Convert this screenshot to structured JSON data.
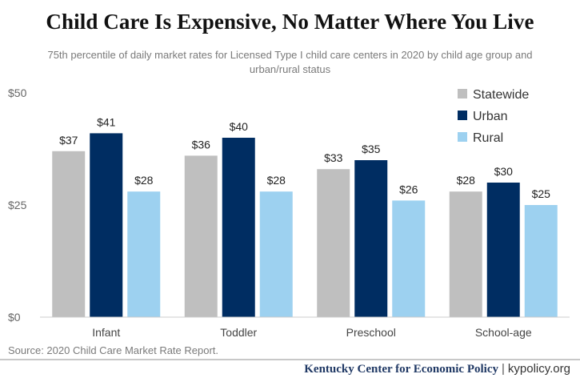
{
  "header": {
    "title": "Child Care Is Expensive, No Matter Where You Live",
    "subtitle": "75th percentile of daily market rates for Licensed Type I child care centers in 2020 by child age group and urban/rural status"
  },
  "chart_data": {
    "type": "bar",
    "categories": [
      "Infant",
      "Toddler",
      "Preschool",
      "School-age"
    ],
    "series": [
      {
        "name": "Statewide",
        "values": [
          37,
          36,
          33,
          28
        ],
        "labels": [
          "$37",
          "$36",
          "$33",
          "$28"
        ],
        "color": "#bfbfbf"
      },
      {
        "name": "Urban",
        "values": [
          41,
          40,
          35,
          30
        ],
        "labels": [
          "$41",
          "$40",
          "$35",
          "$30"
        ],
        "color": "#002d62"
      },
      {
        "name": "Rural",
        "values": [
          28,
          28,
          26,
          25
        ],
        "labels": [
          "$28",
          "$28",
          "$26",
          "$25"
        ],
        "color": "#9dd1f0"
      }
    ],
    "ylim": [
      0,
      50
    ],
    "yticks": [
      0,
      25,
      50
    ],
    "ytick_labels": [
      "$0",
      "$25",
      "$50"
    ],
    "grid": false,
    "legend_position": "top-right"
  },
  "footer": {
    "source": "Source: 2020 Child Care Market Rate Report.",
    "org": "Kentucky Center for Economic Policy",
    "separator": "|",
    "site": "kypolicy.org"
  }
}
